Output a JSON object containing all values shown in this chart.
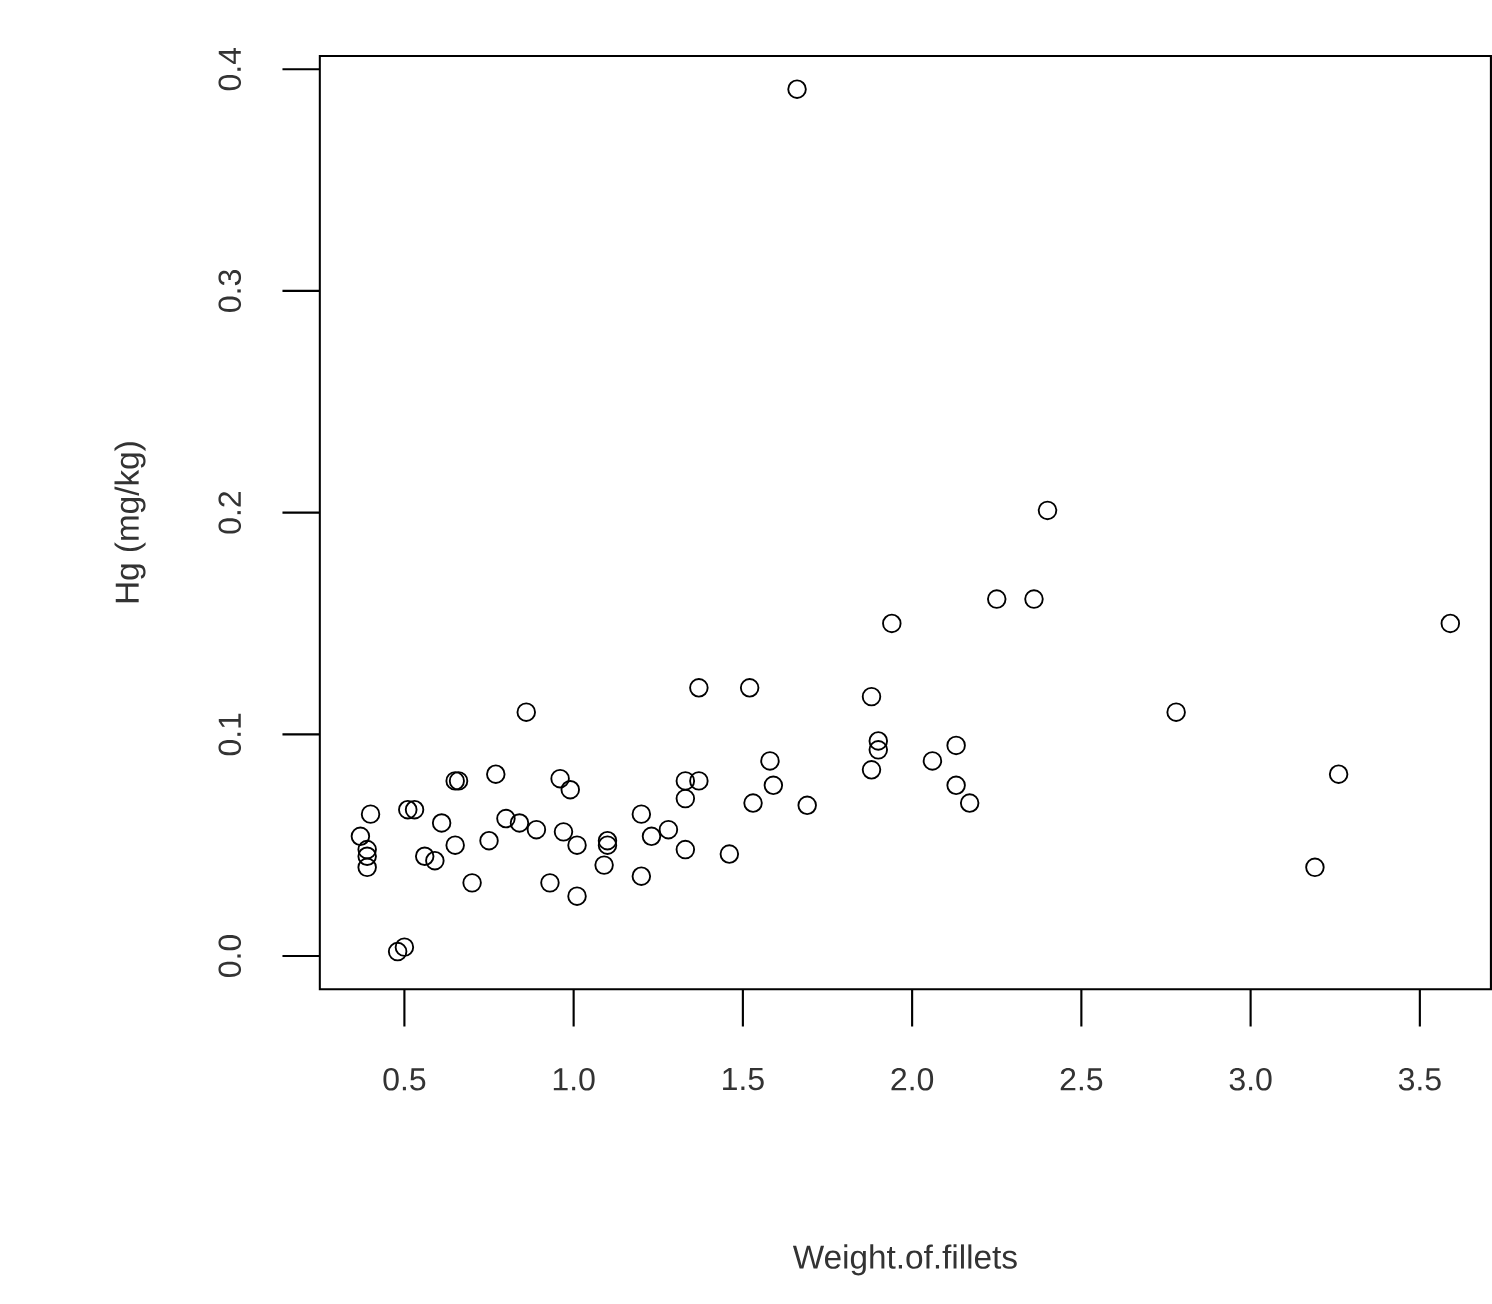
{
  "chart_data": {
    "type": "scatter",
    "xlabel": "Weight.of.fillets",
    "ylabel": "Hg (mg/kg)",
    "marker": "circle",
    "color": "#000000",
    "xlim": [
      0.25,
      3.71
    ],
    "ylim": [
      -0.015,
      0.406
    ],
    "xticks": [
      0.5,
      {
        "value": 1,
        "label": "1.0"
      },
      1.5,
      {
        "value": 2,
        "label": "2.0"
      },
      2.5,
      {
        "value": 3,
        "label": "3.0"
      },
      3.5
    ],
    "yticks": [
      {
        "value": 0,
        "label": "0.0"
      },
      0.1,
      0.2,
      0.3,
      0.4
    ],
    "x": [
      1.66,
      2.4,
      2.25,
      2.36,
      1.94,
      3.59,
      1.37,
      1.52,
      1.88,
      0.86,
      2.78,
      1.9,
      1.9,
      2.13,
      2.06,
      1.58,
      1.88,
      3.26,
      0.77,
      0.65,
      0.66,
      0.96,
      0.99,
      1.33,
      1.37,
      1.33,
      1.59,
      2.13,
      1.53,
      1.69,
      2.17,
      0.4,
      0.51,
      0.53,
      0.61,
      0.8,
      0.84,
      0.89,
      0.97,
      1.2,
      1.23,
      1.28,
      1.1,
      1.01,
      0.37,
      0.39,
      0.39,
      0.39,
      0.65,
      0.56,
      0.59,
      0.75,
      1.1,
      1.09,
      1.33,
      1.46,
      1.2,
      0.7,
      0.93,
      1.01,
      0.48,
      0.5,
      3.19
    ],
    "values": [
      0.391,
      0.201,
      0.161,
      0.161,
      0.15,
      0.15,
      0.121,
      0.121,
      0.117,
      0.11,
      0.11,
      0.097,
      0.093,
      0.095,
      0.088,
      0.088,
      0.084,
      0.082,
      0.082,
      0.079,
      0.079,
      0.08,
      0.075,
      0.079,
      0.079,
      0.071,
      0.077,
      0.077,
      0.069,
      0.068,
      0.069,
      0.064,
      0.066,
      0.066,
      0.06,
      0.062,
      0.06,
      0.057,
      0.056,
      0.064,
      0.054,
      0.057,
      0.052,
      0.05,
      0.054,
      0.048,
      0.045,
      0.04,
      0.05,
      0.045,
      0.043,
      0.052,
      0.05,
      0.041,
      0.048,
      0.046,
      0.036,
      0.033,
      0.033,
      0.027,
      0.002,
      0.004,
      0.04
    ]
  }
}
